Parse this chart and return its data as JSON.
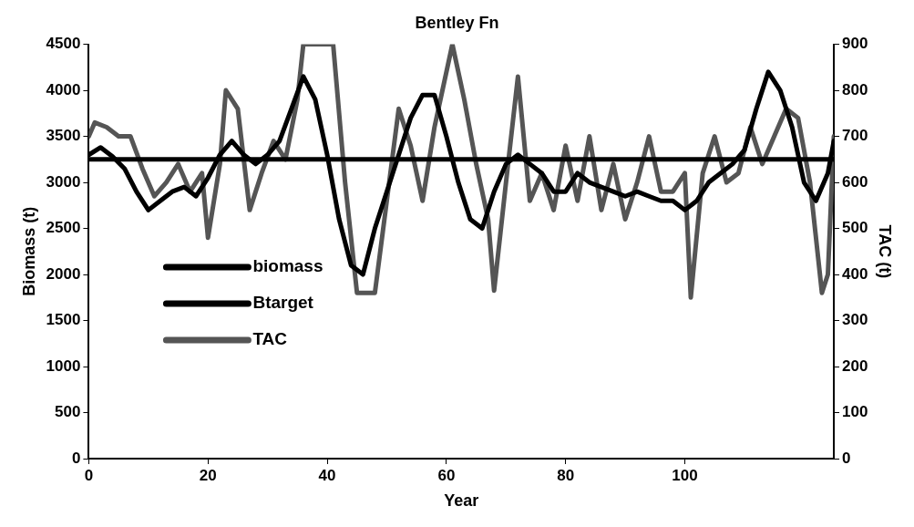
{
  "chart_data": {
    "type": "line",
    "title": "Bentley Fn",
    "xlabel": "Year",
    "ylabel": "Biomass (t)",
    "y2label": "TAC (t)",
    "xlim": [
      0,
      125
    ],
    "xticks": [
      0,
      20,
      40,
      60,
      80,
      100
    ],
    "ylim": [
      0,
      4500
    ],
    "yticks": [
      0,
      500,
      1000,
      1500,
      2000,
      2500,
      3000,
      3500,
      4000,
      4500
    ],
    "y2lim": [
      0,
      900
    ],
    "y2ticks": [
      0,
      100,
      200,
      300,
      400,
      500,
      600,
      700,
      800,
      900
    ],
    "grid": false,
    "legend": "bottom left",
    "marker": "none",
    "line_style": "solid",
    "series": [
      {
        "name": "biomass",
        "color": "#000000",
        "x": [
          0,
          2,
          4,
          6,
          8,
          10,
          12,
          14,
          16,
          18,
          20,
          22,
          24,
          26,
          28,
          30,
          32,
          34,
          36,
          38,
          40,
          42,
          44,
          46,
          48,
          50,
          52,
          54,
          56,
          58,
          60,
          62,
          64,
          66,
          68,
          70,
          72,
          74,
          76,
          78,
          80,
          82,
          84,
          86,
          88,
          90,
          92,
          94,
          96,
          98,
          100,
          102,
          104,
          106,
          108,
          110,
          112,
          114,
          116,
          118,
          120,
          122,
          124,
          125
        ],
        "values": [
          3300,
          3380,
          3280,
          3150,
          2900,
          2700,
          2800,
          2900,
          2950,
          2850,
          3050,
          3300,
          3450,
          3300,
          3200,
          3300,
          3450,
          3800,
          4150,
          3900,
          3300,
          2600,
          2100,
          2000,
          2500,
          2900,
          3300,
          3700,
          3950,
          3950,
          3500,
          3000,
          2600,
          2500,
          2900,
          3200,
          3300,
          3200,
          3100,
          2900,
          2900,
          3100,
          3000,
          2950,
          2900,
          2850,
          2900,
          2850,
          2800,
          2800,
          2700,
          2800,
          3000,
          3100,
          3200,
          3350,
          3800,
          4200,
          4000,
          3600,
          3000,
          2800,
          3100,
          3450
        ]
      },
      {
        "name": "Btarget",
        "color": "#000000",
        "x": [
          0,
          125
        ],
        "values": [
          3250,
          3250
        ]
      },
      {
        "name": "TAC",
        "color": "#555555",
        "axis": "y2",
        "x": [
          0,
          1,
          3,
          5,
          7,
          9,
          11,
          13,
          15,
          17,
          19,
          20,
          22,
          23,
          25,
          27,
          29,
          31,
          33,
          35,
          36,
          41,
          43,
          45,
          48,
          50,
          52,
          54,
          56,
          58,
          61,
          63,
          65,
          67,
          68,
          70,
          72,
          74,
          76,
          78,
          80,
          82,
          84,
          86,
          88,
          90,
          92,
          94,
          96,
          98,
          100,
          101,
          103,
          105,
          107,
          109,
          111,
          113,
          115,
          117,
          119,
          121,
          123,
          124,
          125
        ],
        "values": [
          700,
          730,
          720,
          700,
          700,
          630,
          570,
          600,
          640,
          580,
          620,
          480,
          640,
          800,
          760,
          540,
          620,
          690,
          650,
          780,
          900,
          900,
          600,
          360,
          360,
          560,
          760,
          680,
          560,
          720,
          900,
          780,
          640,
          520,
          365,
          600,
          830,
          560,
          620,
          540,
          680,
          560,
          700,
          540,
          640,
          520,
          600,
          700,
          580,
          580,
          620,
          350,
          620,
          700,
          600,
          620,
          720,
          640,
          700,
          760,
          740,
          600,
          360,
          400,
          700
        ]
      }
    ]
  }
}
